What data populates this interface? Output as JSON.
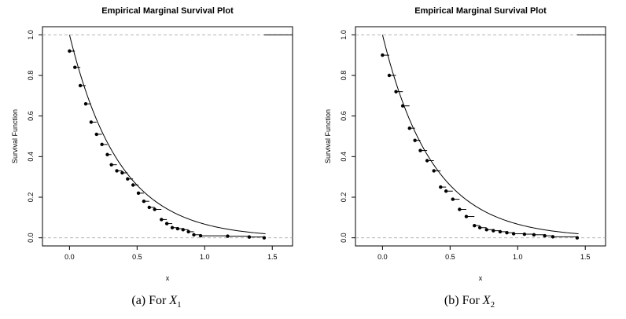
{
  "chart_data": [
    {
      "type": "scatter",
      "title": "Empirical Marginal Survival Plot",
      "xlabel": "x",
      "ylabel": "Survival Function",
      "xlim": [
        -0.2,
        1.65
      ],
      "ylim": [
        -0.04,
        1.04
      ],
      "xticks": [
        "0.0",
        "0.5",
        "1.0",
        "1.5"
      ],
      "yticks": [
        "0.0",
        "0.2",
        "0.4",
        "0.6",
        "0.8",
        "1.0"
      ],
      "xtick_values": [
        0,
        0.5,
        1.0,
        1.5
      ],
      "ytick_values": [
        0,
        0.2,
        0.4,
        0.6,
        0.8,
        1.0
      ],
      "reference_lines_y": [
        0,
        1
      ],
      "curve_rate": 2.7,
      "curve_xmax": 1.45,
      "caption_prefix": "(a)  For ",
      "caption_var": "X",
      "caption_sub": "1",
      "points": [
        [
          0.0,
          0.92
        ],
        [
          0.04,
          0.84
        ],
        [
          0.08,
          0.75
        ],
        [
          0.12,
          0.66
        ],
        [
          0.16,
          0.57
        ],
        [
          0.2,
          0.51
        ],
        [
          0.24,
          0.46
        ],
        [
          0.28,
          0.41
        ],
        [
          0.31,
          0.36
        ],
        [
          0.35,
          0.33
        ],
        [
          0.39,
          0.32
        ],
        [
          0.43,
          0.29
        ],
        [
          0.47,
          0.26
        ],
        [
          0.51,
          0.22
        ],
        [
          0.55,
          0.18
        ],
        [
          0.59,
          0.15
        ],
        [
          0.63,
          0.14
        ],
        [
          0.68,
          0.09
        ],
        [
          0.72,
          0.07
        ],
        [
          0.76,
          0.05
        ],
        [
          0.8,
          0.045
        ],
        [
          0.84,
          0.04
        ],
        [
          0.88,
          0.03
        ],
        [
          0.92,
          0.015
        ],
        [
          0.97,
          0.01
        ],
        [
          1.17,
          0.008
        ],
        [
          1.33,
          0.004
        ],
        [
          1.44,
          0.0
        ]
      ],
      "step_end": [
        1.44,
        1.0
      ]
    },
    {
      "type": "scatter",
      "title": "Empirical Marginal Survival Plot",
      "xlabel": "x",
      "ylabel": "Survival Function",
      "xlim": [
        -0.2,
        1.65
      ],
      "ylim": [
        -0.04,
        1.04
      ],
      "xticks": [
        "0.0",
        "0.5",
        "1.0",
        "1.5"
      ],
      "yticks": [
        "0.0",
        "0.2",
        "0.4",
        "0.6",
        "0.8",
        "1.0"
      ],
      "xtick_values": [
        0,
        0.5,
        1.0,
        1.5
      ],
      "ytick_values": [
        0,
        0.2,
        0.4,
        0.6,
        0.8,
        1.0
      ],
      "reference_lines_y": [
        0,
        1
      ],
      "curve_rate": 2.7,
      "curve_xmax": 1.45,
      "caption_prefix": "(b)  For ",
      "caption_var": "X",
      "caption_sub": "2",
      "points": [
        [
          0.0,
          0.9
        ],
        [
          0.05,
          0.8
        ],
        [
          0.1,
          0.72
        ],
        [
          0.15,
          0.65
        ],
        [
          0.2,
          0.54
        ],
        [
          0.24,
          0.48
        ],
        [
          0.28,
          0.43
        ],
        [
          0.33,
          0.38
        ],
        [
          0.38,
          0.33
        ],
        [
          0.43,
          0.25
        ],
        [
          0.47,
          0.23
        ],
        [
          0.52,
          0.19
        ],
        [
          0.57,
          0.14
        ],
        [
          0.62,
          0.105
        ],
        [
          0.68,
          0.06
        ],
        [
          0.72,
          0.05
        ],
        [
          0.77,
          0.04
        ],
        [
          0.82,
          0.035
        ],
        [
          0.87,
          0.03
        ],
        [
          0.92,
          0.025
        ],
        [
          0.97,
          0.02
        ],
        [
          1.05,
          0.018
        ],
        [
          1.12,
          0.015
        ],
        [
          1.2,
          0.01
        ],
        [
          1.26,
          0.005
        ],
        [
          1.44,
          0.0
        ]
      ],
      "step_end": [
        1.44,
        1.0
      ]
    }
  ]
}
